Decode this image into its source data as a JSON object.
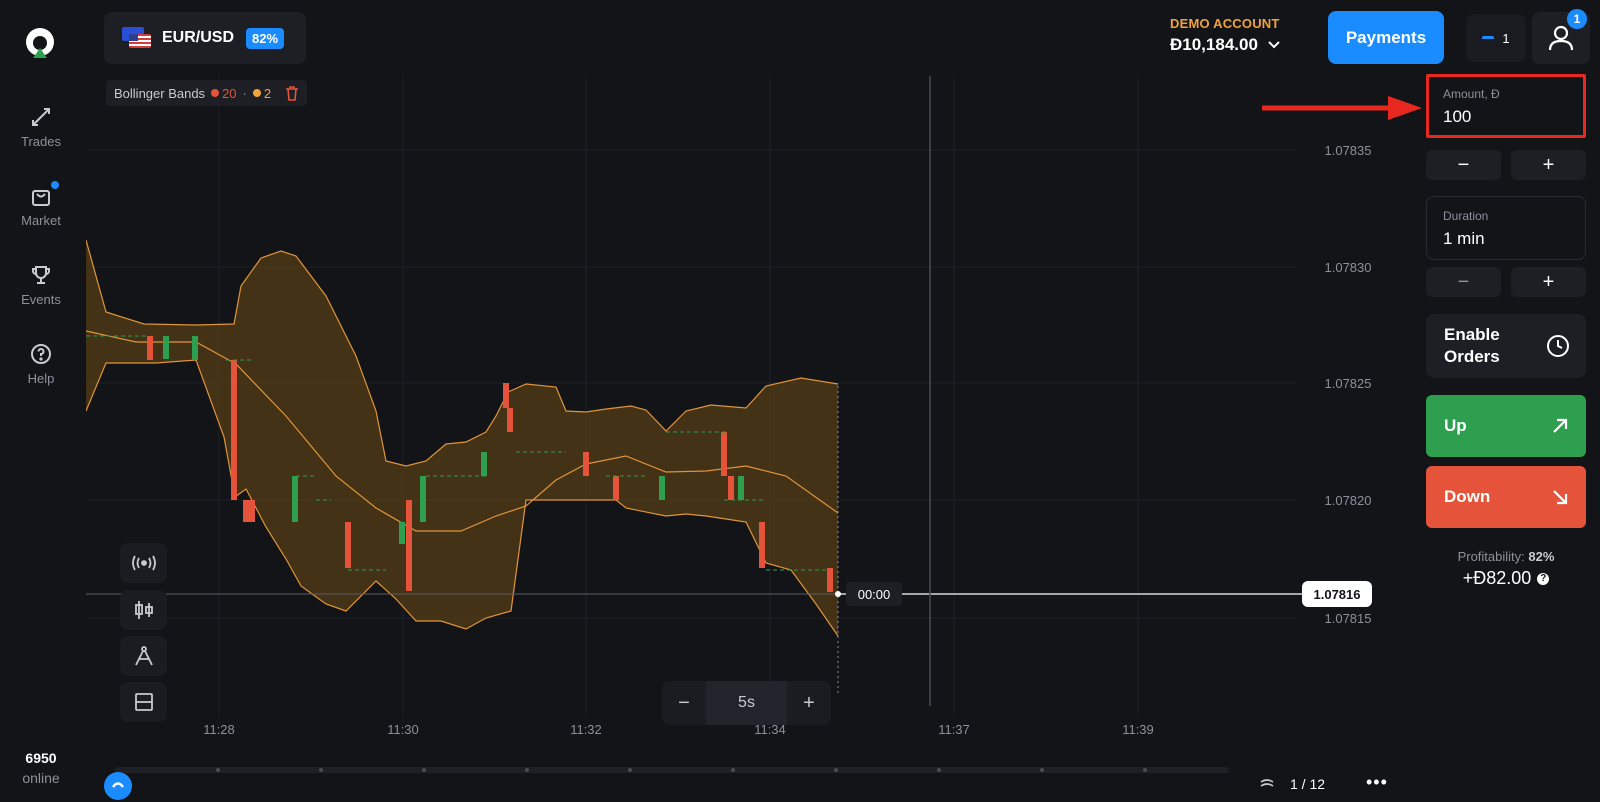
{
  "sidebar": {
    "items": [
      {
        "label": "Trades",
        "icon": "trades-icon"
      },
      {
        "label": "Market",
        "icon": "market-icon"
      },
      {
        "label": "Events",
        "icon": "trophy-icon"
      },
      {
        "label": "Help",
        "icon": "help-icon"
      }
    ],
    "online_count": "6950",
    "online_label": "online"
  },
  "header": {
    "asset": "EUR/USD",
    "asset_payout": "82%",
    "account_label": "DEMO ACCOUNT",
    "balance": "Đ10,184.00",
    "payments_label": "Payments",
    "notifications_count": "1",
    "profile_badge": "1"
  },
  "indicator": {
    "name": "Bollinger Bands",
    "period": "20",
    "deviation": "2"
  },
  "chart": {
    "price_labels": [
      "1.07835",
      "1.07830",
      "1.07825",
      "1.07820",
      "1.07815"
    ],
    "time_labels": [
      "11:28",
      "11:30",
      "11:32",
      "11:34",
      "11:37",
      "11:39"
    ],
    "current_price": "1.07816",
    "countdown": "00:00",
    "zoom_value": "5s",
    "zoom_minus": "−",
    "zoom_plus": "+",
    "pager": "1 / 12",
    "more": "•••"
  },
  "chart_data": {
    "type": "candlestick",
    "indicator": "Bollinger Bands",
    "yrange": [
      1.07813,
      1.0784
    ],
    "candles_count": 26
  },
  "panel": {
    "amount_label": "Amount, Đ",
    "amount_value": "100",
    "minus": "−",
    "plus": "+",
    "duration_label": "Duration",
    "duration_value": "1 min",
    "enable_orders": "Enable Orders",
    "up_label": "Up",
    "down_label": "Down",
    "profitability_label": "Profitability:",
    "profitability_pct": "82%",
    "profit_value": "+Đ82.00",
    "help": "?"
  },
  "colors": {
    "accent": "#1a8cff",
    "up": "#2d9f4e",
    "down": "#e5533a",
    "demo": "#f1a33a",
    "highlight": "#e8281e",
    "band_fill": "#5a3f16",
    "band_line": "#e0943a"
  }
}
